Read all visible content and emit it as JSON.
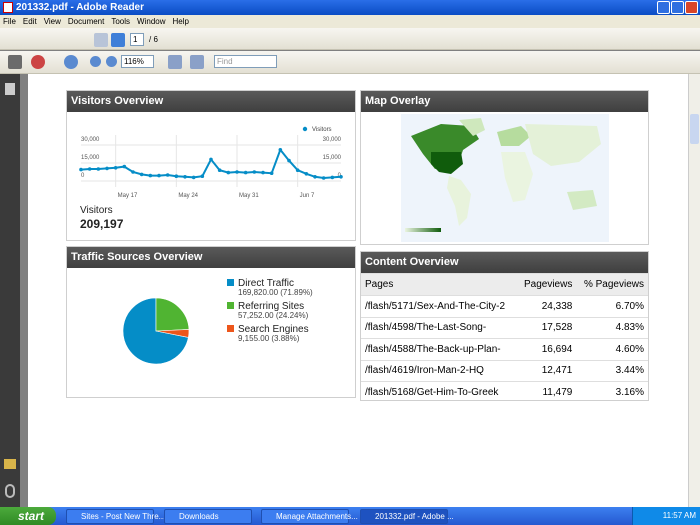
{
  "window": {
    "title": "201332.pdf - Adobe Reader",
    "menu": [
      "File",
      "Edit",
      "View",
      "Document",
      "Tools",
      "Window",
      "Help"
    ]
  },
  "toolbar": {
    "page": "1",
    "page_total": "/ 6",
    "zoom": "116%",
    "find": "Find"
  },
  "report": {
    "visitors": {
      "title": "Visitors Overview",
      "metric_label": "Visitors",
      "metric_value": "209,197",
      "chart_data": {
        "type": "line",
        "categories": [
          null,
          null,
          null,
          null,
          "May 17",
          null,
          null,
          null,
          null,
          null,
          null,
          "May 24",
          null,
          null,
          null,
          null,
          null,
          null,
          "May 31",
          null,
          null,
          null,
          null,
          null,
          null,
          "Jun 7",
          null,
          null,
          null,
          null,
          null
        ],
        "series": [
          {
            "name": "Visitors",
            "color": "#058dc7",
            "values": [
              9500,
              10000,
              10000,
              10500,
              11000,
              12000,
              7500,
              5500,
              4500,
              4500,
              5000,
              4000,
              3500,
              3000,
              4000,
              18000,
              9000,
              7000,
              7500,
              7000,
              7500,
              7000,
              6500,
              26000,
              17000,
              9000,
              6000,
              3500,
              2500,
              3000,
              3500
            ]
          }
        ],
        "ylim": [
          0,
          30000
        ],
        "yticks": [
          0,
          {
            "value": 15000,
            "label": "15,000"
          },
          {
            "value": 30000,
            "label": "30,000"
          }
        ],
        "y2lim": [
          0,
          30000
        ],
        "y2ticks": [
          0,
          {
            "value": 15000,
            "label": "15,000"
          },
          {
            "value": 30000,
            "label": "30,000"
          }
        ],
        "grid": true,
        "legend": "top-right"
      }
    },
    "map": {
      "title": "Map Overlay"
    },
    "traffic": {
      "title": "Traffic Sources Overview",
      "chart_data": {
        "type": "pie",
        "series": [
          {
            "name": "Direct Traffic",
            "color": "#058dc7",
            "values": [
              169820
            ],
            "value_labels": [
              "169,820.00 (71.89%)"
            ]
          },
          {
            "name": "Referring Sites",
            "color": "#50b432",
            "values": [
              57252
            ],
            "value_labels": [
              "57,252.00 (24.24%)"
            ]
          },
          {
            "name": "Search Engines",
            "color": "#ed561b",
            "values": [
              9155
            ],
            "value_labels": [
              "9,155.00 (3.88%)"
            ]
          }
        ],
        "legend": "right"
      }
    },
    "content": {
      "title": "Content Overview",
      "table": {
        "header": [
          "Pages",
          "Pageviews",
          "% Pageviews"
        ],
        "rows": [
          [
            "/flash/5171/Sex-And-The-City-2",
            "24,338",
            "6.70%"
          ],
          [
            "/flash/4598/The-Last-Song-",
            "17,528",
            "4.83%"
          ],
          [
            "/flash/4588/The-Back-up-Plan-",
            "16,694",
            "4.60%"
          ],
          [
            "/flash/4619/Iron-Man-2-HQ",
            "12,471",
            "3.44%"
          ],
          [
            "/flash/5168/Get-Him-To-Greek",
            "11,479",
            "3.16%"
          ]
        ]
      }
    }
  },
  "taskbar": {
    "start": "start",
    "tasks": [
      "Sites - Post New Thre...",
      "Downloads",
      "Manage Attachments...",
      "201332.pdf - Adobe ..."
    ],
    "clock": "11:57 AM"
  }
}
